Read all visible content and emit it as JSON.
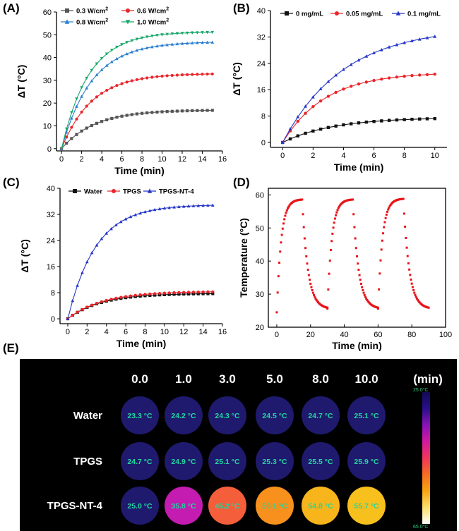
{
  "panels": {
    "A": {
      "label": "(A)",
      "chart_data": {
        "type": "line",
        "xlabel": "Time (min)",
        "ylabel": "ΔT (°C)",
        "xlim": [
          -0.5,
          16
        ],
        "ylim": [
          -1,
          60
        ],
        "xticks": [
          0,
          2,
          4,
          6,
          8,
          10,
          12,
          14,
          16
        ],
        "yticks": [
          0,
          10,
          20,
          30,
          40,
          50,
          60
        ],
        "legend": "top-left",
        "grid": false,
        "series": [
          {
            "name": "0.3 W/cm",
            "sup": "2",
            "color": "#555555",
            "marker": "square",
            "plateau": 17.0,
            "tau": 3.3,
            "tmax": 15
          },
          {
            "name": "0.6 W/cm",
            "sup": "2",
            "color": "#e8262b",
            "marker": "circle",
            "plateau": 33.0,
            "tau": 3.0,
            "tmax": 15
          },
          {
            "name": "0.8 W/cm",
            "sup": "2",
            "color": "#2a7fd0",
            "marker": "triangle",
            "plateau": 47.0,
            "tau": 3.0,
            "tmax": 15
          },
          {
            "name": "1.0 W/cm",
            "sup": "2",
            "color": "#1aa86a",
            "marker": "triangle-down",
            "plateau": 51.3,
            "tau": 2.7,
            "tmax": 15
          }
        ]
      }
    },
    "B": {
      "label": "(B)",
      "chart_data": {
        "type": "line",
        "xlabel": "Time (min)",
        "ylabel": "ΔT (°C)",
        "xlim": [
          -0.8,
          10.8
        ],
        "ylim": [
          -1.5,
          40
        ],
        "xticks": [
          0,
          2,
          4,
          6,
          8,
          10
        ],
        "yticks": [
          0,
          8,
          16,
          24,
          32,
          40
        ],
        "legend": "top",
        "grid": false,
        "series": [
          {
            "name": "0 mg/mL",
            "color": "#111111",
            "marker": "square",
            "plateau": 7.6,
            "tau": 3.3,
            "tmax": 10
          },
          {
            "name": "0.05 mg/mL",
            "color": "#e8262b",
            "marker": "circle",
            "plateau": 21.3,
            "tau": 2.8,
            "tmax": 10
          },
          {
            "name": "0.1 mg/mL",
            "color": "#2536c8",
            "marker": "triangle",
            "plateau": 35.0,
            "tau": 4.0,
            "tmax": 10
          }
        ]
      }
    },
    "C": {
      "label": "(C)",
      "chart_data": {
        "type": "line",
        "xlabel": "Time (min)",
        "ylabel": "ΔT (°C)",
        "xlim": [
          -0.8,
          16
        ],
        "ylim": [
          -1.5,
          40
        ],
        "xticks": [
          0,
          2,
          4,
          6,
          8,
          10,
          12,
          14,
          16
        ],
        "yticks": [
          0,
          8,
          16,
          24,
          32,
          40
        ],
        "legend": "top",
        "grid": false,
        "series": [
          {
            "name": "Water",
            "color": "#111111",
            "marker": "square",
            "plateau": 7.8,
            "tau": 3.4,
            "tmax": 15
          },
          {
            "name": "TPGS",
            "color": "#e8262b",
            "marker": "circle",
            "plateau": 8.4,
            "tau": 3.6,
            "tmax": 15
          },
          {
            "name": "TPGS-NT-4",
            "color": "#2536c8",
            "marker": "triangle",
            "plateau": 35.0,
            "tau": 2.9,
            "tmax": 15
          }
        ]
      }
    },
    "D": {
      "label": "(D)",
      "chart_data": {
        "type": "scatter",
        "xlabel": "Time (min)",
        "ylabel": "Temperature (°C)",
        "xlim": [
          -5,
          100
        ],
        "ylim": [
          20,
          62
        ],
        "xticks": [
          0,
          20,
          40,
          60,
          80,
          100
        ],
        "yticks": [
          20,
          30,
          40,
          50,
          60
        ],
        "grid": false,
        "color": "#e8141a",
        "cycles": [
          {
            "start": 0,
            "base": 24.5,
            "peak": 58.7
          },
          {
            "start": 30,
            "base": 25.6,
            "peak": 58.7
          },
          {
            "start": 60,
            "base": 25.6,
            "peak": 58.9
          }
        ],
        "heat_minutes": 15,
        "cool_minutes": 15,
        "final_min": 25.5
      }
    },
    "E": {
      "label": "(E)",
      "time_headers": [
        "0.0",
        "1.0",
        "3.0",
        "5.0",
        "8.0",
        "10.0"
      ],
      "unit": "(min)",
      "rows": [
        {
          "name": "Water",
          "values": [
            "23.3 °C",
            "24.2 °C",
            "24.3 °C",
            "24.5 °C",
            "24.7 °C",
            "25.1 °C"
          ],
          "colors": [
            "#1f1a6e",
            "#1f1a6e",
            "#1f1a6e",
            "#1f1a6e",
            "#1f1a6e",
            "#1f1a6e"
          ]
        },
        {
          "name": "TPGS",
          "values": [
            "24.7 °C",
            "24.9 °C",
            "25.1 °C",
            "25.3 °C",
            "25.5 °C",
            "25.9 °C"
          ],
          "colors": [
            "#1f1a6e",
            "#1f1a6e",
            "#1f1a6e",
            "#1f1a6e",
            "#1f1a6e",
            "#1f1a6e"
          ]
        },
        {
          "name": "TPGS-NT-4",
          "values": [
            "25.0 °C",
            "35.8 °C",
            "45.2 °C",
            "50.1 °C",
            "54.8 °C",
            "55.7 °C"
          ],
          "colors": [
            "#1f1a6e",
            "#c41bb0",
            "#f45e3a",
            "#f7901c",
            "#f7b51b",
            "#f7c01c"
          ]
        }
      ],
      "colorbar": {
        "top_label": "25.0°C",
        "bottom_label": "65.0°C",
        "colors": [
          "#110a55",
          "#2a0f8a",
          "#8a12b8",
          "#d2199f",
          "#f0365c",
          "#f66d23",
          "#f7a50f",
          "#fbe06a",
          "#ffffff"
        ]
      }
    }
  }
}
